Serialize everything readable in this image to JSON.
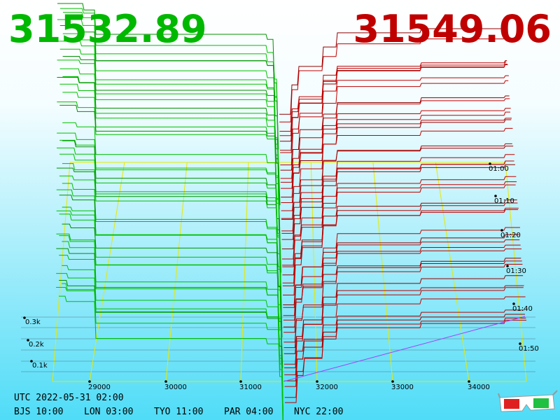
{
  "header": {
    "bid": "31532.89",
    "ask": "31549.06"
  },
  "price_axis": {
    "ticks": [
      "29000",
      "30000",
      "31000",
      "32000",
      "33000",
      "34000"
    ]
  },
  "depth_axis": {
    "ticks": [
      "0.1k",
      "0.2k",
      "0.3k"
    ]
  },
  "time_axis": {
    "ticks": [
      "01:00",
      "01:10",
      "01:20",
      "01:30",
      "01:40",
      "01:50"
    ]
  },
  "footer": {
    "utc": "UTC 2022-05-31 02:00",
    "zones": [
      "BJS 10:00",
      "LON 03:00",
      "TYO 11:00",
      "PAR 04:00",
      "NYC 22:00"
    ]
  }
}
